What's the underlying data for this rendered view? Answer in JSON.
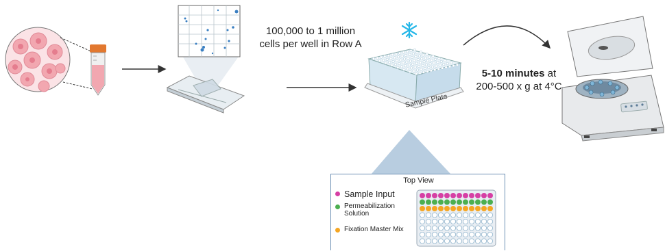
{
  "labels": {
    "cells_per_well": "100,000 to 1 million cells per well in Row A",
    "spin_bold": "5-10 minutes",
    "spin_rest_1": " at",
    "spin_rest_2": "200-500 x g at 4°C",
    "sample_plate": "Sample Plate"
  },
  "top_view": {
    "title": "Top View",
    "legend": [
      {
        "label": "Sample Input",
        "color": "#d63fa4"
      },
      {
        "label": "Permeabilization Solution",
        "color": "#4caf50"
      },
      {
        "label": "Fixation Master Mix",
        "color": "#f5a623"
      }
    ],
    "rows": 8,
    "cols": 12,
    "row_colors": [
      "#d63fa4",
      "#4caf50",
      "#f5a623"
    ]
  },
  "colors": {
    "plate_blue": "#cde3ef",
    "cell_pink": "#f2a7b0",
    "tube_orange": "#e2782f",
    "snowflake": "#25b7e8",
    "arrow": "#333333"
  }
}
